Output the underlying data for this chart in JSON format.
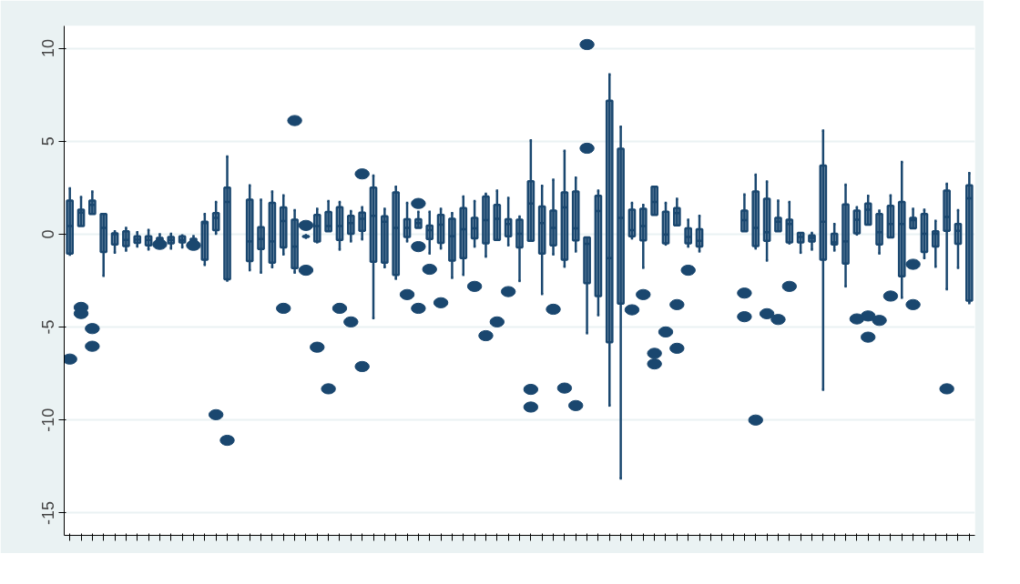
{
  "chart_data": {
    "type": "box",
    "color": "#1a476f",
    "ylim": [
      -16.2,
      11.2
    ],
    "yticks": [
      -15,
      -10,
      -5,
      0,
      5,
      10
    ],
    "grid": "y",
    "categories": [
      null,
      null,
      null,
      null,
      null,
      null,
      null,
      null,
      null,
      null,
      null,
      null,
      null,
      null,
      null,
      null,
      null,
      null,
      null,
      null,
      null,
      null,
      null,
      null,
      null,
      null,
      null,
      null,
      null,
      null,
      null,
      null,
      null,
      null,
      null,
      null,
      null,
      null,
      null,
      null,
      null,
      null,
      null,
      null,
      null,
      null,
      null,
      null,
      null,
      null,
      null,
      null,
      null,
      null,
      null,
      null,
      null,
      null,
      null,
      null,
      null,
      null,
      null,
      null,
      null,
      null,
      null,
      null,
      null,
      null,
      null,
      null,
      null,
      null,
      null,
      null,
      null,
      null,
      null,
      null,
      null
    ],
    "boxes": [
      {
        "low": -1.1,
        "q1": -1.04,
        "median": 0.43,
        "q3": 1.81,
        "high": 2.47,
        "outliers": [
          -6.72
        ]
      },
      {
        "low": 0.43,
        "q1": 0.43,
        "median": 1.16,
        "q3": 1.32,
        "high": 2.0,
        "outliers": [
          -3.94,
          -4.27
        ]
      },
      {
        "low": 1.08,
        "q1": 1.08,
        "median": 1.57,
        "q3": 1.81,
        "high": 2.3,
        "outliers": [
          -5.08,
          -6.03
        ]
      },
      {
        "low": -2.24,
        "q1": -0.96,
        "median": 0.34,
        "q3": 1.08,
        "high": 1.08
      },
      {
        "low": -1.0,
        "q1": -0.56,
        "median": 0.0,
        "q3": 0.05,
        "high": 0.15
      },
      {
        "low": -0.88,
        "q1": -0.64,
        "median": -0.31,
        "q3": 0.15,
        "high": 0.34
      },
      {
        "low": -0.66,
        "q1": -0.47,
        "median": -0.28,
        "q3": -0.11,
        "high": 0.1
      },
      {
        "low": -0.83,
        "q1": -0.6,
        "median": -0.31,
        "q3": -0.11,
        "high": 0.23
      },
      {
        "low": -0.4,
        "q1": -0.35,
        "median": -0.3,
        "q3": -0.2,
        "high": 0.0,
        "outliers": [
          -0.55
        ]
      },
      {
        "low": -0.77,
        "q1": -0.5,
        "median": -0.31,
        "q3": -0.15,
        "high": 0.02
      },
      {
        "low": -0.72,
        "q1": -0.44,
        "median": -0.31,
        "q3": -0.11,
        "high": -0.07
      },
      {
        "low": -0.5,
        "q1": -0.45,
        "median": -0.35,
        "q3": -0.25,
        "high": -0.1,
        "outliers": [
          -0.6
        ]
      },
      {
        "low": -1.65,
        "q1": -1.37,
        "median": 0.6,
        "q3": 0.67,
        "high": 1.08
      },
      {
        "low": 0.02,
        "q1": 0.21,
        "median": 0.87,
        "q3": 1.13,
        "high": 1.73,
        "outliers": [
          -9.71
        ]
      },
      {
        "low": -2.5,
        "q1": -2.43,
        "median": 1.73,
        "q3": 2.5,
        "high": 4.18,
        "outliers": [
          -11.09
        ]
      },
      null,
      {
        "low": -1.94,
        "q1": -1.45,
        "median": -0.39,
        "q3": 1.85,
        "high": 2.63
      },
      {
        "low": -2.07,
        "q1": -0.8,
        "median": -0.26,
        "q3": 0.38,
        "high": 1.85
      },
      {
        "low": -1.78,
        "q1": -1.53,
        "median": -0.39,
        "q3": 1.68,
        "high": 2.3
      },
      {
        "low": -1.09,
        "q1": -0.72,
        "median": 0.7,
        "q3": 1.44,
        "high": 2.09,
        "outliers": [
          -3.99
        ]
      },
      {
        "low": -2.07,
        "q1": -1.83,
        "median": -0.67,
        "q3": 0.78,
        "high": 1.29,
        "outliers": [
          6.11
        ]
      },
      {
        "low": -0.2,
        "q1": -0.15,
        "median": -0.12,
        "q3": -0.1,
        "high": -0.05,
        "outliers": [
          0.47,
          -1.94
        ]
      },
      {
        "low": -0.44,
        "q1": -0.39,
        "median": 0.43,
        "q3": 1.03,
        "high": 1.36,
        "outliers": [
          -6.08
        ]
      },
      {
        "low": 0.15,
        "q1": 0.15,
        "median": 0.43,
        "q3": 1.19,
        "high": 1.78,
        "outliers": [
          -8.32
        ]
      },
      {
        "low": -0.83,
        "q1": -0.31,
        "median": 0.43,
        "q3": 1.45,
        "high": 1.73,
        "outliers": [
          -3.99
        ]
      },
      {
        "low": -0.39,
        "q1": 0.02,
        "median": 0.59,
        "q3": 0.99,
        "high": 1.24,
        "outliers": [
          -4.72
        ]
      },
      {
        "low": -0.28,
        "q1": 0.18,
        "median": 0.83,
        "q3": 1.16,
        "high": 1.45,
        "outliers": [
          3.24,
          -7.12
        ]
      },
      {
        "low": -4.52,
        "q1": -1.49,
        "median": 0.99,
        "q3": 2.5,
        "high": 3.15
      },
      {
        "low": -1.78,
        "q1": -1.53,
        "median": 0.67,
        "q3": 0.96,
        "high": 1.37
      },
      {
        "low": -2.4,
        "q1": -2.19,
        "median": 0.34,
        "q3": 2.25,
        "high": 2.55
      },
      {
        "low": -0.39,
        "q1": -0.15,
        "median": 0.34,
        "q3": 0.8,
        "high": 1.68,
        "outliers": [
          -3.25
        ]
      },
      {
        "low": 0.34,
        "q1": 0.34,
        "median": 0.59,
        "q3": 0.8,
        "high": 1.21,
        "outliers": [
          1.65,
          -0.67,
          -3.99
        ]
      },
      {
        "low": -1.04,
        "q1": -0.26,
        "median": 0.21,
        "q3": 0.46,
        "high": 1.21,
        "outliers": [
          -1.89
        ]
      },
      {
        "low": -0.77,
        "q1": -0.47,
        "median": 0.51,
        "q3": 1.03,
        "high": 1.37,
        "outliers": [
          -3.69
        ]
      },
      {
        "low": -2.35,
        "q1": -1.42,
        "median": -0.11,
        "q3": 0.83,
        "high": 1.13
      },
      {
        "low": -2.19,
        "q1": -1.29,
        "median": 0.26,
        "q3": 1.4,
        "high": 2.03
      },
      {
        "low": -0.67,
        "q1": -0.23,
        "median": 0.31,
        "q3": 0.87,
        "high": 1.78,
        "outliers": [
          -2.81
        ]
      },
      {
        "low": -1.21,
        "q1": -0.5,
        "median": 0.75,
        "q3": 2.03,
        "high": 2.17,
        "outliers": [
          -5.46
        ]
      },
      {
        "low": -0.31,
        "q1": -0.31,
        "median": 0.83,
        "q3": 1.57,
        "high": 2.35,
        "outliers": [
          -4.72
        ]
      },
      {
        "low": -0.6,
        "q1": -0.11,
        "median": 0.54,
        "q3": 0.8,
        "high": 1.95,
        "outliers": [
          -3.09
        ]
      },
      {
        "low": -2.52,
        "q1": -0.72,
        "median": 0.02,
        "q3": 0.78,
        "high": 0.95
      },
      {
        "low": -0.36,
        "q1": -0.36,
        "median": 1.65,
        "q3": 2.84,
        "high": 5.05,
        "outliers": [
          -8.35,
          -9.3
        ]
      },
      {
        "low": -3.22,
        "q1": -1.04,
        "median": 0.59,
        "q3": 1.49,
        "high": 2.6
      },
      {
        "low": -1.09,
        "q1": -0.6,
        "median": 0.34,
        "q3": 1.27,
        "high": 2.93,
        "outliers": [
          -4.04
        ]
      },
      {
        "low": -1.75,
        "q1": -1.37,
        "median": 1.44,
        "q3": 2.25,
        "high": 4.48,
        "outliers": [
          -8.28
        ]
      },
      {
        "low": -0.93,
        "q1": -0.34,
        "median": 0.31,
        "q3": 2.3,
        "high": 3.04,
        "outliers": [
          -9.22
        ]
      },
      {
        "low": -5.33,
        "q1": -2.63,
        "median": -0.52,
        "q3": -0.18,
        "high": -0.18,
        "outliers": [
          10.2,
          4.62
        ]
      },
      {
        "low": -4.36,
        "q1": -3.33,
        "median": 1.24,
        "q3": 2.06,
        "high": 2.35
      },
      {
        "low": -9.22,
        "q1": -5.82,
        "median": -1.29,
        "q3": 7.17,
        "high": 8.59
      },
      {
        "low": -13.14,
        "q1": -3.74,
        "median": 0.87,
        "q3": 4.59,
        "high": 5.78
      },
      {
        "low": -0.23,
        "q1": -0.11,
        "median": 0.21,
        "q3": 1.32,
        "high": 1.68,
        "outliers": [
          -4.07
        ]
      },
      {
        "low": -1.81,
        "q1": -0.34,
        "median": 0.43,
        "q3": 1.37,
        "high": 1.57,
        "outliers": [
          -3.25
        ]
      },
      {
        "low": 1.03,
        "q1": 1.03,
        "median": 1.73,
        "q3": 2.55,
        "high": 2.55,
        "outliers": [
          -6.41,
          -6.98
        ]
      },
      {
        "low": -0.56,
        "q1": -0.5,
        "median": -0.02,
        "q3": 1.21,
        "high": 1.68,
        "outliers": [
          -5.26
        ]
      },
      {
        "low": 0.47,
        "q1": 0.47,
        "median": 1.13,
        "q3": 1.4,
        "high": 1.9,
        "outliers": [
          -3.79,
          -6.14
        ]
      },
      {
        "low": -0.67,
        "q1": -0.5,
        "median": -0.15,
        "q3": 0.31,
        "high": 0.78,
        "outliers": [
          -1.94
        ]
      },
      {
        "low": -0.93,
        "q1": -0.67,
        "median": -0.36,
        "q3": 0.26,
        "high": 0.99
      },
      null,
      null,
      null,
      {
        "low": 0.15,
        "q1": 0.15,
        "median": 0.75,
        "q3": 1.27,
        "high": 2.14,
        "outliers": [
          -3.17,
          -4.44
        ]
      },
      {
        "low": -0.77,
        "q1": -0.64,
        "median": 0.34,
        "q3": 2.3,
        "high": 3.2,
        "outliers": [
          -10.0
        ]
      },
      {
        "low": -1.42,
        "q1": -0.36,
        "median": 0.1,
        "q3": 1.9,
        "high": 2.83,
        "outliers": [
          -4.28
        ]
      },
      {
        "low": 0.15,
        "q1": 0.15,
        "median": 0.67,
        "q3": 0.87,
        "high": 1.81,
        "outliers": [
          -4.59
        ]
      },
      {
        "low": -0.5,
        "q1": -0.44,
        "median": 0.54,
        "q3": 0.78,
        "high": 1.73,
        "outliers": [
          -2.81
        ]
      },
      {
        "low": -1.0,
        "q1": -0.44,
        "median": -0.15,
        "q3": 0.07,
        "high": 0.07
      },
      {
        "low": -0.83,
        "q1": -0.39,
        "median": -0.2,
        "q3": -0.07,
        "high": 0.07
      },
      {
        "low": -8.37,
        "q1": -1.37,
        "median": 0.67,
        "q3": 3.69,
        "high": 5.57
      },
      {
        "low": -0.88,
        "q1": -0.56,
        "median": -0.44,
        "q3": 0.02,
        "high": 0.54
      },
      {
        "low": -2.81,
        "q1": -1.58,
        "median": -0.39,
        "q3": 1.6,
        "high": 2.66
      },
      {
        "low": -0.02,
        "q1": 0.05,
        "median": 0.78,
        "q3": 1.27,
        "high": 1.45,
        "outliers": [
          -4.56
        ]
      },
      {
        "low": 0.51,
        "q1": 0.51,
        "median": 1.32,
        "q3": 1.65,
        "high": 2.06,
        "outliers": [
          -4.4,
          -5.54
        ]
      },
      {
        "low": -1.04,
        "q1": -0.56,
        "median": 0.1,
        "q3": 1.08,
        "high": 1.27,
        "outliers": [
          -4.64
        ]
      },
      {
        "low": -0.18,
        "q1": -0.18,
        "median": 0.54,
        "q3": 1.53,
        "high": 2.09,
        "outliers": [
          -3.33
        ]
      },
      {
        "low": -3.42,
        "q1": -2.27,
        "median": 0.54,
        "q3": 1.73,
        "high": 3.89
      },
      {
        "low": 0.31,
        "q1": 0.31,
        "median": 0.75,
        "q3": 0.87,
        "high": 1.36,
        "outliers": [
          -1.62,
          -3.79
        ]
      },
      {
        "low": -1.29,
        "q1": -0.96,
        "median": 0.02,
        "q3": 1.08,
        "high": 1.32
      },
      {
        "low": -1.75,
        "q1": -0.67,
        "median": 0.02,
        "q3": 0.15,
        "high": 0.72
      },
      {
        "low": -2.96,
        "q1": 0.18,
        "median": 0.92,
        "q3": 2.34,
        "high": 2.71,
        "outliers": [
          -8.32
        ]
      },
      {
        "low": -1.81,
        "q1": -0.52,
        "median": 0.18,
        "q3": 0.54,
        "high": 1.29
      },
      {
        "low": -3.71,
        "q1": -3.58,
        "median": 1.93,
        "q3": 2.63,
        "high": 3.28
      }
    ]
  }
}
